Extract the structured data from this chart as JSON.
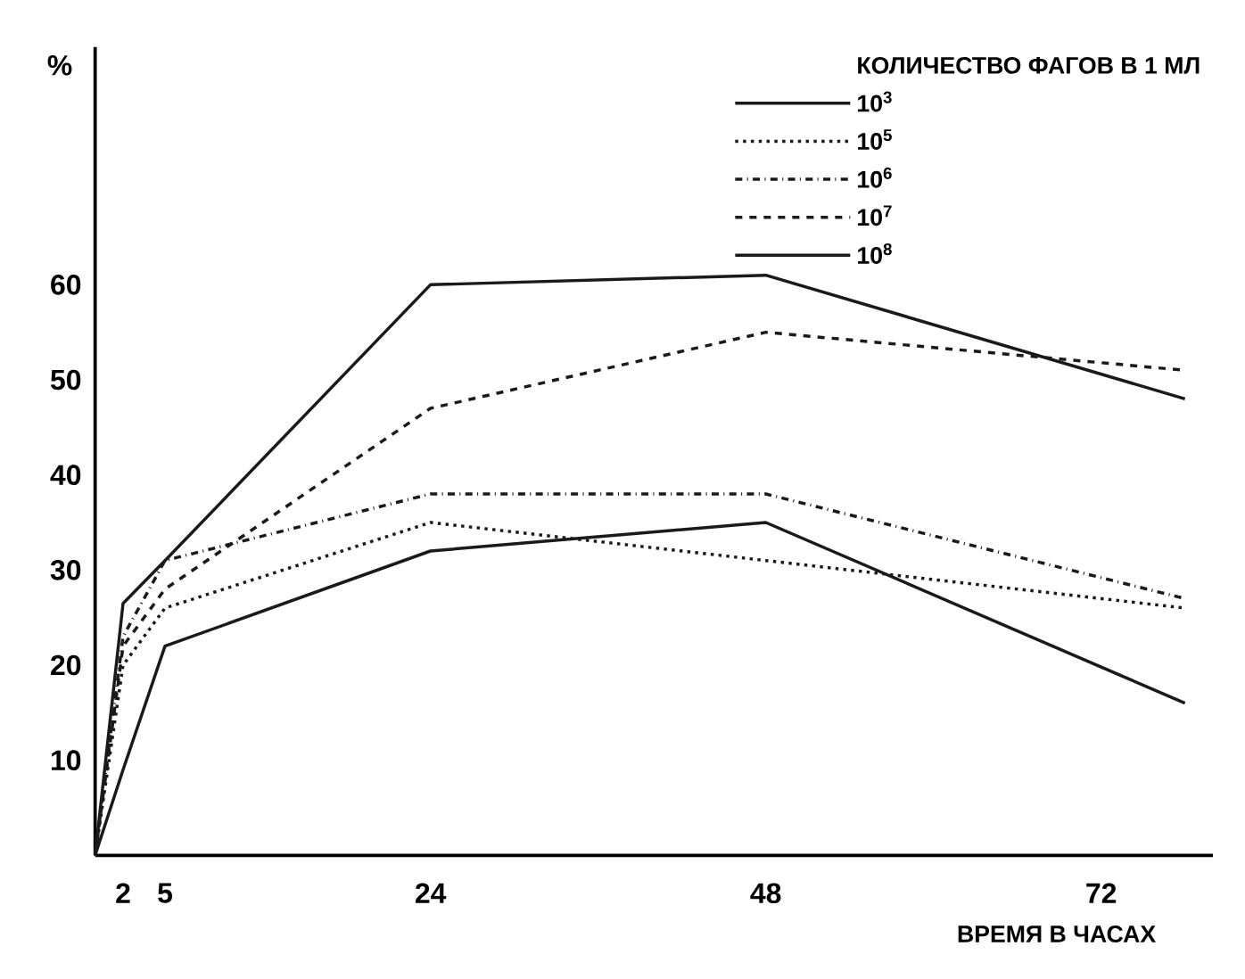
{
  "chart_data": {
    "type": "line",
    "xlabel": "ВРЕМЯ В ЧАСАХ",
    "ylabel": "%",
    "legend_title": "КОЛИЧЕСТВО ФАГОВ В 1 МЛ",
    "x": [
      0,
      2,
      5,
      24,
      48,
      78
    ],
    "series": [
      {
        "name": "10$^{3}$",
        "color": "#1a1a1a",
        "line_style": "solid",
        "values": [
          0,
          9,
          22,
          32,
          35,
          16
        ]
      },
      {
        "name": "10$^{5}$",
        "color": "#1a1a1a",
        "line_style": "dotted",
        "values": [
          0,
          20,
          26,
          35,
          31,
          26
        ]
      },
      {
        "name": "10$^{6}$",
        "color": "#1a1a1a",
        "line_style": "dashdot",
        "values": [
          0,
          23,
          31,
          38,
          38,
          27
        ]
      },
      {
        "name": "10$^{7}$",
        "color": "#1a1a1a",
        "line_style": "dashed",
        "values": [
          0,
          22,
          28,
          47,
          55,
          51
        ]
      },
      {
        "name": "10$^{8}$",
        "color": "#1a1a1a",
        "line_style": "solid",
        "values": [
          0,
          26.5,
          31,
          60,
          61,
          48
        ]
      }
    ],
    "xlim": [
      0,
      80
    ],
    "ylim": [
      0,
      85
    ],
    "xticks": [
      2,
      5,
      24,
      48,
      72
    ],
    "yticks": [
      10,
      20,
      30,
      40,
      50,
      60
    ],
    "legend": "top right",
    "marker": "none"
  }
}
